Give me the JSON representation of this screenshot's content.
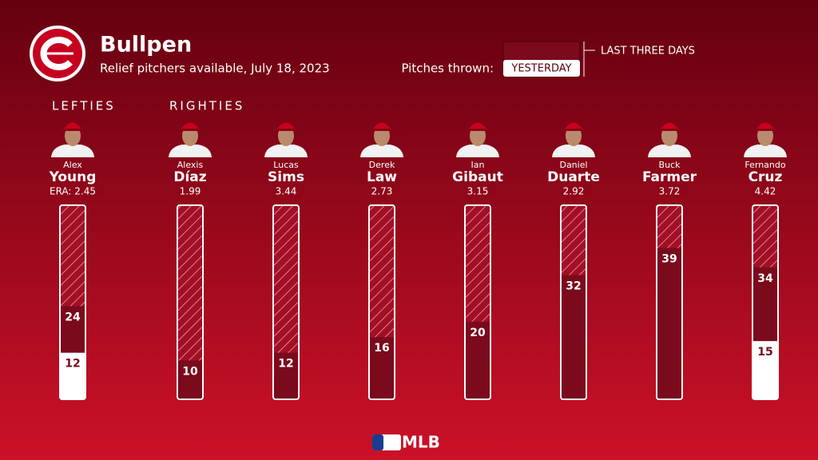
{
  "chart_data": {
    "type": "overlay-bar",
    "title": "Bullpen",
    "subtitle": "Relief pitchers available, July 18, 2023",
    "legend_label": "Pitches thrown:",
    "groups": [
      {
        "label": "LEFTIES",
        "start": 0
      },
      {
        "label": "RIGHTIES",
        "start": 1
      }
    ],
    "first_names": [
      "Alex",
      "Alexis",
      "Lucas",
      "Derek",
      "Ian",
      "Daniel",
      "Buck",
      "Fernando"
    ],
    "categories": [
      "Young",
      "Díaz",
      "Sims",
      "Law",
      "Gibaut",
      "Duarte",
      "Farmer",
      "Cruz"
    ],
    "era_labels": [
      "ERA: 2.45",
      "1.99",
      "3.44",
      "2.73",
      "3.15",
      "2.92",
      "3.72",
      "4.42"
    ],
    "series": [
      {
        "name": "LAST THREE DAYS",
        "color": "#7a0a1c",
        "values": [
          24,
          10,
          12,
          16,
          20,
          32,
          39,
          34
        ]
      },
      {
        "name": "YESTERDAY",
        "color": "#ffffff",
        "values": [
          12,
          null,
          null,
          null,
          null,
          null,
          null,
          15
        ]
      }
    ],
    "ylim": [
      0,
      50
    ],
    "footer": "MLB"
  }
}
